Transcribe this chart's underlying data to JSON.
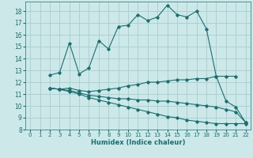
{
  "xlabel": "Humidex (Indice chaleur)",
  "bg_color": "#cce8e8",
  "grid_color": "#aacccc",
  "line_color": "#1a7070",
  "xlim": [
    -0.5,
    22.5
  ],
  "ylim": [
    8,
    18.8
  ],
  "yticks": [
    8,
    9,
    10,
    11,
    12,
    13,
    14,
    15,
    16,
    17,
    18
  ],
  "xticks": [
    0,
    1,
    2,
    3,
    4,
    5,
    6,
    7,
    8,
    9,
    10,
    11,
    12,
    13,
    14,
    15,
    16,
    17,
    18,
    19,
    20,
    21,
    22
  ],
  "series": [
    {
      "x": [
        2,
        3,
        4,
        5,
        6,
        7,
        8,
        9,
        10,
        11,
        12,
        13,
        14,
        15,
        16,
        17,
        18,
        19,
        20,
        21
      ],
      "y": [
        12.6,
        12.8,
        15.3,
        12.7,
        13.2,
        15.5,
        14.8,
        16.7,
        16.8,
        17.7,
        17.2,
        17.5,
        18.5,
        17.7,
        17.5,
        18.0,
        16.5,
        12.5,
        12.5,
        12.5
      ]
    },
    {
      "x": [
        2,
        3,
        4,
        5,
        6,
        7,
        8,
        9,
        10,
        11,
        12,
        13,
        14,
        15,
        16,
        17,
        18,
        19,
        20,
        21,
        22
      ],
      "y": [
        11.5,
        11.4,
        11.5,
        11.3,
        11.2,
        11.3,
        11.4,
        11.5,
        11.7,
        11.8,
        12.0,
        12.0,
        12.1,
        12.2,
        12.2,
        12.3,
        12.3,
        12.5,
        10.4,
        9.9,
        8.6
      ]
    },
    {
      "x": [
        2,
        3,
        4,
        5,
        6,
        7,
        8,
        9,
        10,
        11,
        12,
        13,
        14,
        15,
        16,
        17,
        18,
        19,
        20,
        21,
        22
      ],
      "y": [
        11.5,
        11.4,
        11.3,
        11.1,
        10.9,
        10.8,
        10.7,
        10.6,
        10.6,
        10.5,
        10.5,
        10.4,
        10.4,
        10.3,
        10.2,
        10.1,
        10.0,
        9.9,
        9.7,
        9.5,
        8.6
      ]
    },
    {
      "x": [
        2,
        3,
        4,
        5,
        6,
        7,
        8,
        9,
        10,
        11,
        12,
        13,
        14,
        15,
        16,
        17,
        18,
        19,
        20,
        21,
        22
      ],
      "y": [
        11.5,
        11.4,
        11.2,
        11.0,
        10.7,
        10.5,
        10.3,
        10.1,
        9.9,
        9.7,
        9.5,
        9.3,
        9.1,
        9.0,
        8.8,
        8.7,
        8.6,
        8.5,
        8.5,
        8.5,
        8.5
      ]
    }
  ]
}
